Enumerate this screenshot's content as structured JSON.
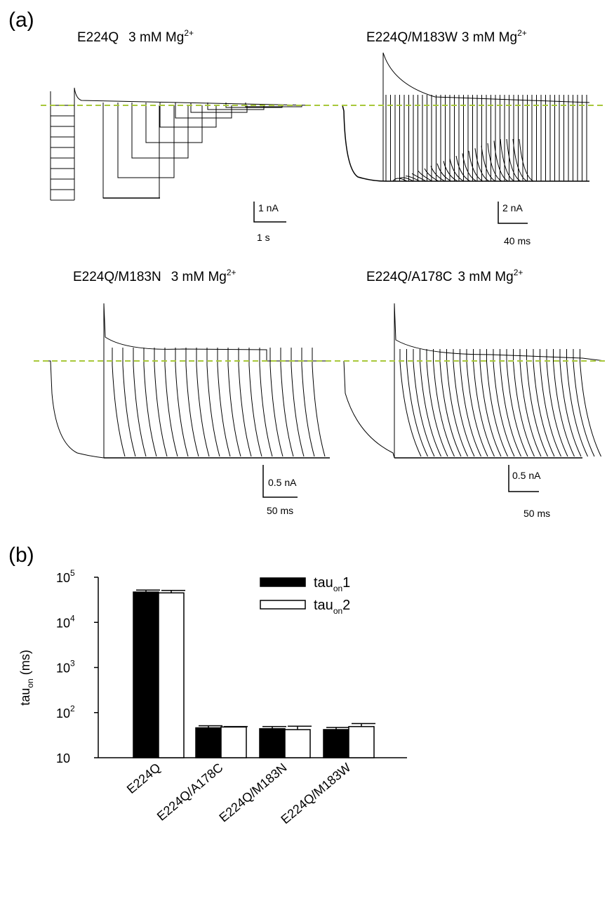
{
  "panel_a": {
    "label": "(a)",
    "traces": [
      {
        "title": "E224Q",
        "condition": "3 mM Mg",
        "ion": "2+",
        "scale_y": "1 nA",
        "scale_x": "1 s"
      },
      {
        "title": "E224Q/M183W",
        "condition": "3 mM Mg",
        "ion": "2+",
        "scale_y": "2 nA",
        "scale_x": "40 ms"
      },
      {
        "title": "E224Q/M183N",
        "condition": "3 mM Mg",
        "ion": "2+",
        "scale_y": "0.5 nA",
        "scale_x": "50 ms"
      },
      {
        "title": "E224Q/A178C",
        "condition": "3 mM Mg",
        "ion": "2+",
        "scale_y": "0.5 nA",
        "scale_x": "50 ms"
      }
    ],
    "baseline_color": "#a8c83a",
    "trace_color": "#000000"
  },
  "panel_b": {
    "label": "(b)",
    "chart_data": {
      "type": "bar",
      "categories": [
        "E224Q",
        "E224Q/A178C",
        "E224Q/M183N",
        "E224Q/M183W"
      ],
      "series": [
        {
          "name_base": "tau",
          "name_sub": "on",
          "name_suffix": "1",
          "color": "#000000",
          "values": [
            47000,
            46,
            44,
            42
          ],
          "errors": [
            5000,
            5,
            5,
            5
          ]
        },
        {
          "name_base": "tau",
          "name_sub": "on",
          "name_suffix": "2",
          "color": "#ffffff",
          "values": [
            45000,
            48,
            42,
            49
          ],
          "errors": [
            6000,
            1,
            8,
            8
          ]
        }
      ],
      "ylabel_base": "tau",
      "ylabel_sub": "on",
      "ylabel_unit": " (ms)",
      "y_scale": "log",
      "ylim": [
        10,
        100000
      ],
      "yticks": [
        {
          "value": 10,
          "base": "10",
          "exp": ""
        },
        {
          "value": 100,
          "base": "10",
          "exp": "2"
        },
        {
          "value": 1000,
          "base": "10",
          "exp": "3"
        },
        {
          "value": 10000,
          "base": "10",
          "exp": "4"
        },
        {
          "value": 100000,
          "base": "10",
          "exp": "5"
        }
      ],
      "legend_position": "top-right",
      "grid": false
    }
  }
}
